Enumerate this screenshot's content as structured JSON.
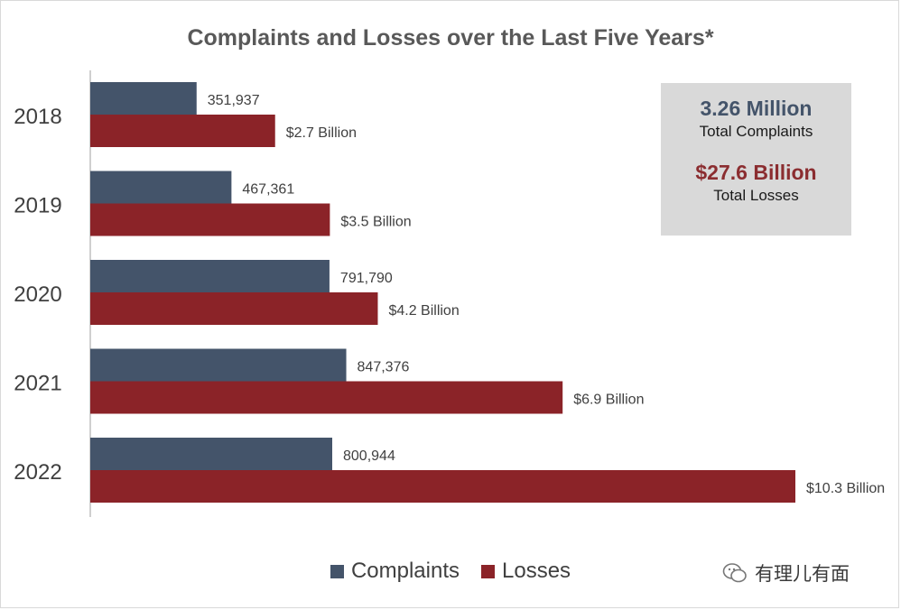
{
  "colors": {
    "complaints": "#44546a",
    "losses": "#8b2328",
    "box": "#d9d9d9",
    "axis": "#bfbfbf"
  },
  "chart_data": {
    "type": "bar",
    "orientation": "horizontal",
    "title": "Complaints and Losses over the Last Five Years*",
    "categories": [
      "2018",
      "2019",
      "2020",
      "2021",
      "2022"
    ],
    "series": [
      {
        "name": "Complaints",
        "values": [
          351937,
          467361,
          791790,
          847376,
          800944
        ],
        "labels": [
          "351,937",
          "467,361",
          "791,790",
          "847,376",
          "800,944"
        ]
      },
      {
        "name": "Losses",
        "unit": "billion USD",
        "values": [
          2.7,
          3.5,
          4.2,
          6.9,
          10.3
        ],
        "labels": [
          "$2.7 Billion",
          "$3.5 Billion",
          "$4.2 Billion",
          "$6.9 Billion",
          "$10.3 Billion"
        ]
      }
    ],
    "legend_position": "bottom",
    "grid": false
  },
  "totals": {
    "complaints_value": "3.26 Million",
    "complaints_label": "Total Complaints",
    "losses_value": "$27.6 Billion",
    "losses_label": "Total Losses"
  },
  "legend": {
    "complaints": "Complaints",
    "losses": "Losses"
  },
  "watermark": {
    "text": "有理儿有面",
    "icon": "wechat-icon"
  }
}
